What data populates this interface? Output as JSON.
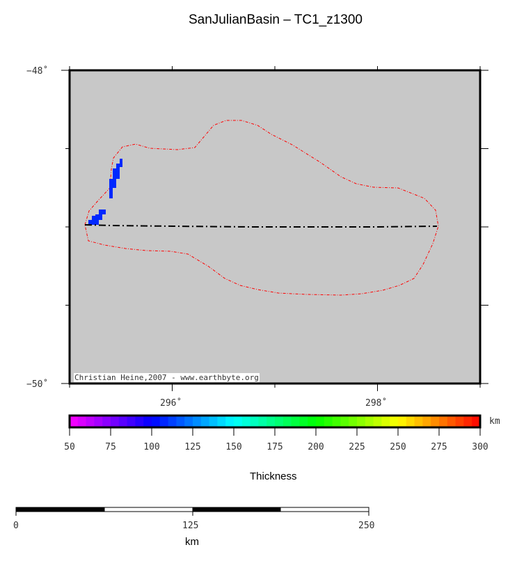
{
  "title": "SanJulianBasin – TC1_z1300",
  "map": {
    "lat_labels": [
      "−48˚",
      "−50˚"
    ],
    "lon_labels": [
      "296˚",
      "298˚"
    ],
    "lon_range": [
      295,
      299
    ],
    "lat_range": [
      -50,
      -48
    ],
    "background_color": "#c8c8c8",
    "outline_color": "#ff0000",
    "credit": "Christian Heine,2007 - www.earthbyte.org"
  },
  "colorbar": {
    "unit": "km",
    "label": "Thickness",
    "ticks": [
      "50",
      "75",
      "100",
      "125",
      "150",
      "175",
      "200",
      "225",
      "250",
      "275",
      "300"
    ],
    "range": [
      50,
      300
    ],
    "colors": {
      "50": "#ff00ff",
      "100": "#0000ff",
      "150": "#00ffff",
      "200": "#00ff00",
      "250": "#ffff00",
      "300": "#ff0000"
    }
  },
  "scalebar": {
    "labels": [
      "0",
      "125",
      "250"
    ],
    "unit": "km"
  }
}
